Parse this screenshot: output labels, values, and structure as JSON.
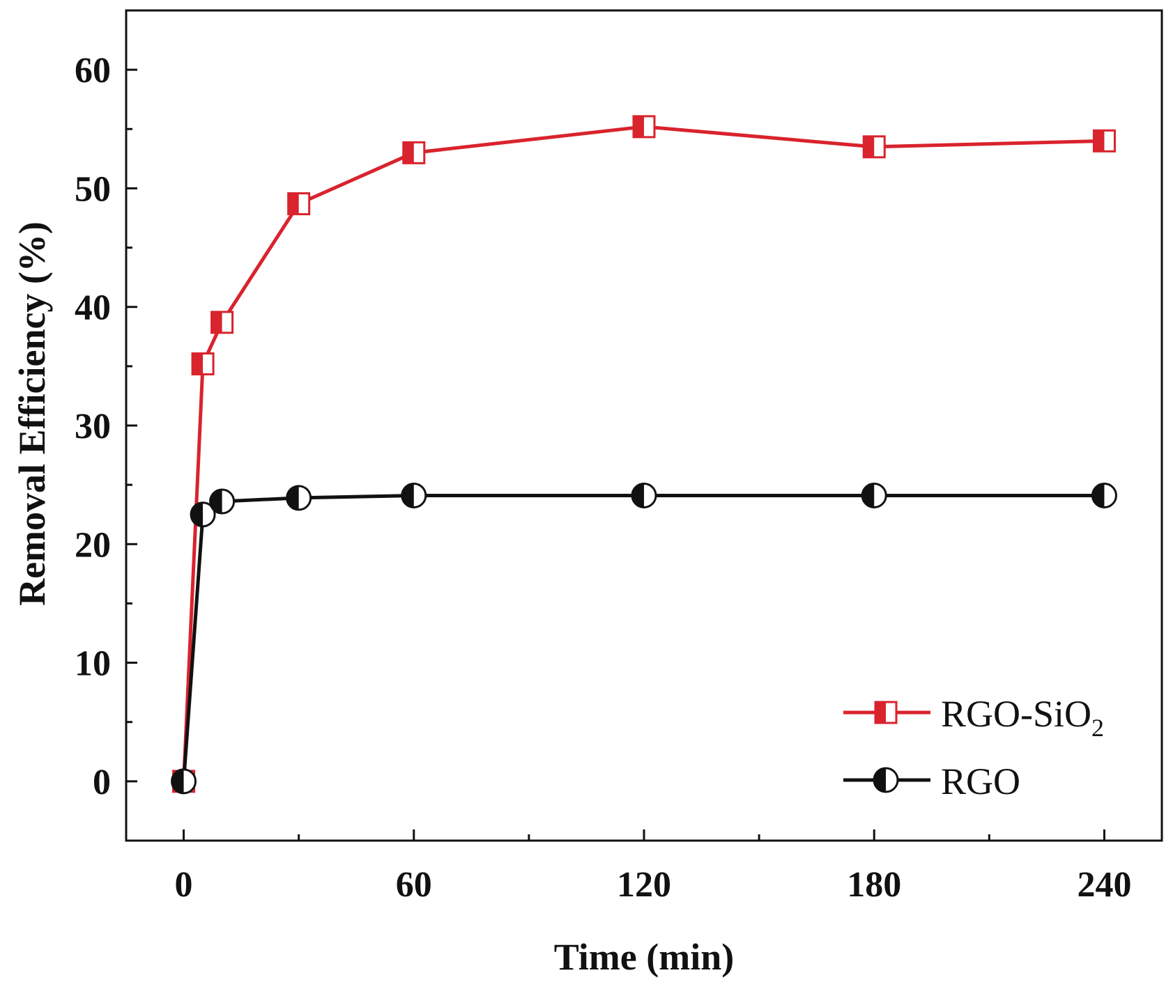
{
  "chart_data": {
    "type": "line",
    "title": "",
    "xlabel": "Time (min)",
    "ylabel": "Removal Efficiency (%)",
    "xlim": [
      -15,
      255
    ],
    "ylim": [
      -5,
      65
    ],
    "xticks": [
      0,
      60,
      120,
      180,
      240
    ],
    "xtick_labels": [
      "0",
      "60",
      "120",
      "180",
      "240"
    ],
    "x_minor_ticks": [
      30,
      90,
      150,
      210
    ],
    "yticks": [
      0,
      10,
      20,
      30,
      40,
      50,
      60
    ],
    "ytick_labels": [
      "0",
      "10",
      "20",
      "30",
      "40",
      "50",
      "60"
    ],
    "y_minor_ticks": [
      -5,
      5,
      15,
      25,
      35,
      45,
      55
    ],
    "grid": false,
    "legend_position": "bottom-right",
    "series": [
      {
        "name": "RGO-SiO",
        "name_subscript": "2",
        "color": "#d9232d",
        "marker": "half-filled-square",
        "x": [
          0,
          5,
          10,
          30,
          60,
          120,
          180,
          240
        ],
        "y": [
          0,
          35.2,
          38.7,
          48.7,
          53.0,
          55.2,
          53.5,
          54.0
        ]
      },
      {
        "name": "RGO",
        "color": "#111111",
        "marker": "half-filled-circle",
        "x": [
          0,
          5,
          10,
          30,
          60,
          120,
          180,
          240
        ],
        "y": [
          0,
          22.5,
          23.6,
          23.9,
          24.1,
          24.1,
          24.1,
          24.1
        ]
      }
    ]
  }
}
